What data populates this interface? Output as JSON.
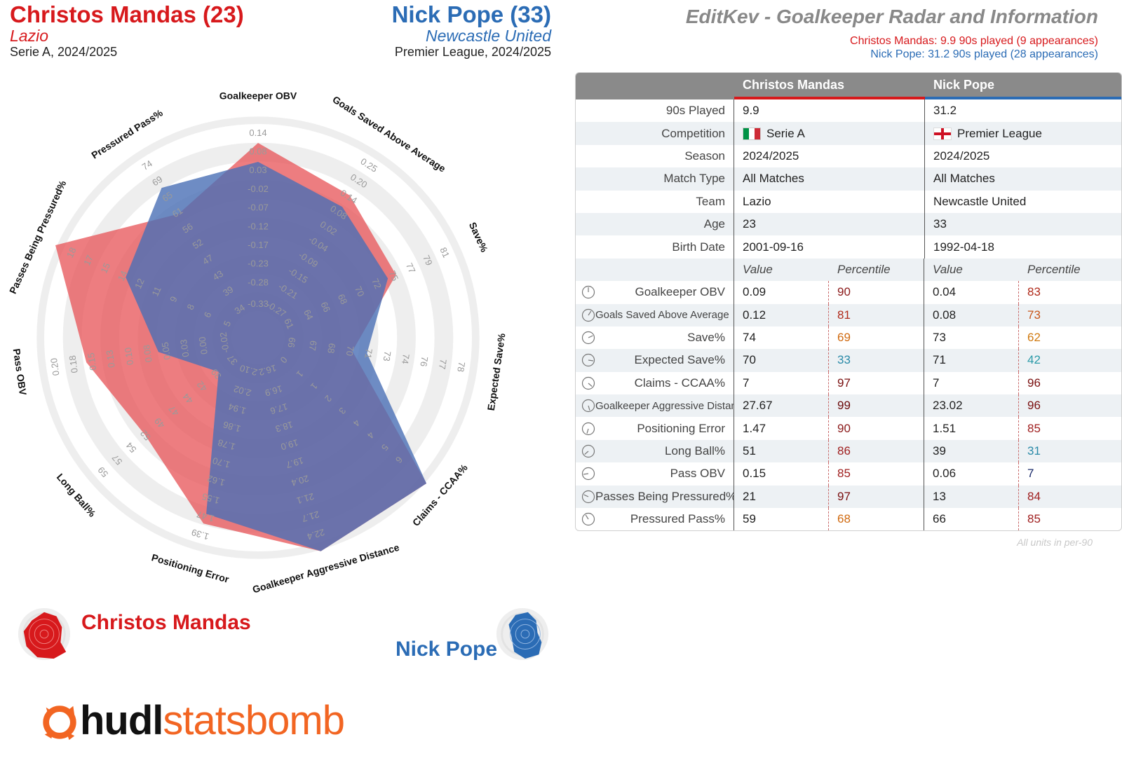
{
  "header": {
    "p1_name": "Christos Mandas (23)",
    "p1_team": "Lazio",
    "p1_comp": "Serie A, 2024/2025",
    "p2_name": "Nick Pope (33)",
    "p2_team": "Newcastle United",
    "p2_comp": "Premier League, 2024/2025",
    "title": "EditKev - Goalkeeper Radar and Information",
    "p1_minutes": "Christos Mandas: 9.9 90s played (9 appearances)",
    "p2_minutes": "Nick Pope: 31.2 90s played (28 appearances)"
  },
  "colors": {
    "p1": "#d7191c",
    "p2": "#2b6cb5",
    "p1_fill": "#e8585c",
    "p2_fill": "#4a6fb5",
    "overlap": "#5f63a0",
    "ring": "#eeeeee"
  },
  "legend": {
    "p1": "Christos Mandas",
    "p2": "Nick Pope"
  },
  "logo": {
    "part1": "hudl",
    "part2": "statsbomb"
  },
  "chart_data": {
    "type": "radar",
    "axes": [
      {
        "label": "Goalkeeper OBV",
        "ticks": [
          "-0.33",
          "-0.28",
          "-0.23",
          "-0.17",
          "-0.12",
          "-0.07",
          "-0.02",
          "0.03",
          "0.08",
          "0.14"
        ]
      },
      {
        "label": "Goals Saved Above Average",
        "ticks": [
          "-0.27",
          "-0.21",
          "-0.15",
          "-0.09",
          "-0.04",
          "0.02",
          "0.08",
          "0.14",
          "0.20",
          "0.25"
        ]
      },
      {
        "label": "Save%",
        "ticks": [
          "61",
          "64",
          "66",
          "68",
          "70",
          "72",
          "75",
          "77",
          "79",
          "81"
        ]
      },
      {
        "label": "Expected Save%",
        "ticks": [
          "66",
          "67",
          "68",
          "70",
          "71",
          "73",
          "74",
          "76",
          "77",
          "78"
        ]
      },
      {
        "label": "Claims - CCAA%",
        "ticks": [
          "0",
          "1",
          "1",
          "2",
          "3",
          "4",
          "4",
          "5",
          "6"
        ]
      },
      {
        "label": "Goalkeeper Aggressive Distance",
        "ticks": [
          "16.2",
          "16.9",
          "17.6",
          "18.3",
          "19.0",
          "19.7",
          "20.4",
          "21.1",
          "21.7",
          "22.4"
        ]
      },
      {
        "label": "Positioning Error",
        "ticks": [
          "2.10",
          "2.02",
          "1.94",
          "1.86",
          "1.78",
          "1.70",
          "1.62",
          "1.55",
          "1.47",
          "1.39"
        ]
      },
      {
        "label": "Long Ball%",
        "ticks": [
          "37",
          "39",
          "42",
          "44",
          "47",
          "49",
          "52",
          "54",
          "57",
          "59"
        ]
      },
      {
        "label": "Pass OBV",
        "ticks": [
          "-0.02",
          "0.00",
          "0.03",
          "0.05",
          "0.08",
          "0.10",
          "0.13",
          "0.15",
          "0.18",
          "0.20"
        ]
      },
      {
        "label": "Passes Being Pressured%",
        "ticks": [
          "5",
          "6",
          "8",
          "9",
          "11",
          "12",
          "14",
          "15",
          "17",
          "18"
        ]
      },
      {
        "label": "Pressured Pass%",
        "ticks": [
          "34",
          "39",
          "43",
          "47",
          "52",
          "56",
          "61",
          "65",
          "69",
          "74"
        ]
      }
    ],
    "series": [
      {
        "name": "Christos Mandas",
        "values": [
          0.09,
          0.12,
          74,
          70,
          7,
          27.67,
          1.47,
          51,
          0.15,
          21,
          59
        ]
      },
      {
        "name": "Nick Pope",
        "values": [
          0.04,
          0.08,
          73,
          71,
          7,
          23.02,
          1.51,
          39,
          0.06,
          13,
          66
        ]
      }
    ]
  },
  "table": {
    "col_p1": "Christos Mandas",
    "col_p2": "Nick Pope",
    "info_rows": [
      {
        "label": "90s Played",
        "p1": "9.9",
        "p2": "31.2"
      },
      {
        "label": "Competition",
        "p1": "Serie A",
        "p2": "Premier League",
        "flags": true
      },
      {
        "label": "Season",
        "p1": "2024/2025",
        "p2": "2024/2025"
      },
      {
        "label": "Match Type",
        "p1": "All Matches",
        "p2": "All Matches"
      },
      {
        "label": "Team",
        "p1": "Lazio",
        "p2": "Newcastle United"
      },
      {
        "label": "Age",
        "p1": "23",
        "p2": "33"
      },
      {
        "label": "Birth Date",
        "p1": "2001-09-16",
        "p2": "1992-04-18"
      }
    ],
    "sub_value": "Value",
    "sub_percentile": "Percentile",
    "metric_rows": [
      {
        "label": "Goalkeeper OBV",
        "p1_val": "0.09",
        "p1_pct": "90",
        "p1_pct_color": "#8b1a1a",
        "p2_val": "0.04",
        "p2_pct": "83",
        "p2_pct_color": "#b02a1a"
      },
      {
        "label": "Goals Saved Above Average",
        "p1_val": "0.12",
        "p1_pct": "81",
        "p1_pct_color": "#b02a1a",
        "p2_val": "0.08",
        "p2_pct": "73",
        "p2_pct_color": "#c8561a"
      },
      {
        "label": "Save%",
        "p1_val": "74",
        "p1_pct": "69",
        "p1_pct_color": "#d06a10",
        "p2_val": "73",
        "p2_pct": "62",
        "p2_pct_color": "#d07a10"
      },
      {
        "label": "Expected Save%",
        "p1_val": "70",
        "p1_pct": "33",
        "p1_pct_color": "#2a8aa8",
        "p2_val": "71",
        "p2_pct": "42",
        "p2_pct_color": "#2a9aa8"
      },
      {
        "label": "Claims - CCAA%",
        "p1_val": "7",
        "p1_pct": "97",
        "p1_pct_color": "#7a1010",
        "p2_val": "7",
        "p2_pct": "96",
        "p2_pct_color": "#7a1010"
      },
      {
        "label": "Goalkeeper Aggressive Distance",
        "p1_val": "27.67",
        "p1_pct": "99",
        "p1_pct_color": "#6a0a0a",
        "p2_val": "23.02",
        "p2_pct": "96",
        "p2_pct_color": "#7a1010"
      },
      {
        "label": "Positioning Error",
        "p1_val": "1.47",
        "p1_pct": "90",
        "p1_pct_color": "#8b1a1a",
        "p2_val": "1.51",
        "p2_pct": "85",
        "p2_pct_color": "#a02020"
      },
      {
        "label": "Long Ball%",
        "p1_val": "51",
        "p1_pct": "86",
        "p1_pct_color": "#a02020",
        "p2_val": "39",
        "p2_pct": "31",
        "p2_pct_color": "#2a8aa8"
      },
      {
        "label": "Pass OBV",
        "p1_val": "0.15",
        "p1_pct": "85",
        "p1_pct_color": "#a02020",
        "p2_val": "0.06",
        "p2_pct": "7",
        "p2_pct_color": "#1a2a6a"
      },
      {
        "label": "Passes Being Pressured%",
        "p1_val": "21",
        "p1_pct": "97",
        "p1_pct_color": "#7a1010",
        "p2_val": "13",
        "p2_pct": "84",
        "p2_pct_color": "#a02020"
      },
      {
        "label": "Pressured Pass%",
        "p1_val": "59",
        "p1_pct": "68",
        "p1_pct_color": "#d06a10",
        "p2_val": "66",
        "p2_pct": "85",
        "p2_pct_color": "#a02020"
      }
    ],
    "units_note": "All units in per-90"
  }
}
